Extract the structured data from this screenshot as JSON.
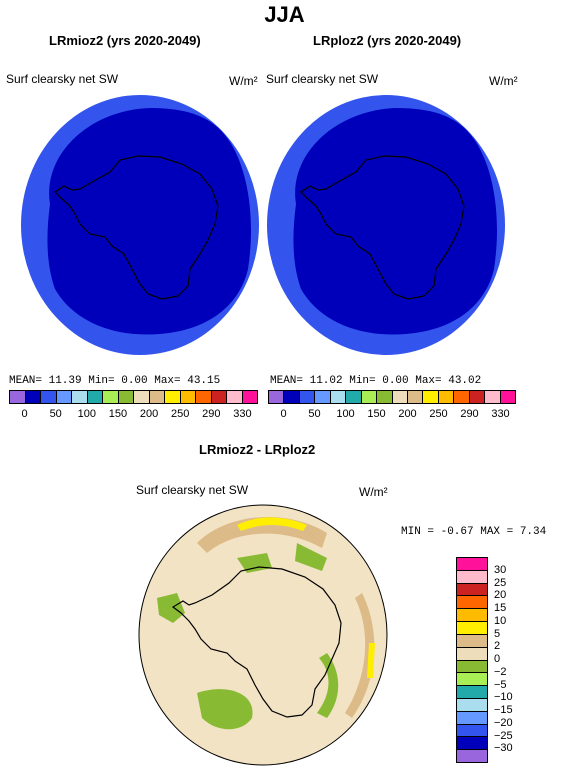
{
  "figure": {
    "title": "JJA"
  },
  "left_panel": {
    "title": "LRmioz2 (yrs 2020-2049)",
    "variable": "Surf clearsky net SW",
    "units": "W/m²",
    "stats": "MEAN=   11.39   Min=     0.00   Max=   43.15"
  },
  "right_panel": {
    "title": "LRploz2 (yrs 2020-2049)",
    "variable": "Surf clearsky net SW",
    "units": "W/m²",
    "stats": "MEAN=   11.02   Min=     0.00   Max=   43.02"
  },
  "top_colorbar": {
    "colors": [
      "#9966dd",
      "#0000bb",
      "#3355ee",
      "#6699ff",
      "#aaddee",
      "#22aaaa",
      "#aaee55",
      "#88bb33",
      "#eeddbb",
      "#ddbb88",
      "#ffee00",
      "#ffbb00",
      "#ff6600",
      "#cc2222",
      "#ffbbcc",
      "#ff1199"
    ],
    "ticks": [
      "0",
      "50",
      "100",
      "150",
      "200",
      "250",
      "290",
      "330"
    ],
    "subtick_labels": [
      "0",
      "50",
      "100",
      "150",
      "200",
      "250",
      "290",
      "330"
    ]
  },
  "bottom_panel": {
    "title": "LRmioz2 - LRploz2",
    "variable": "Surf clearsky net SW",
    "units": "W/m²",
    "stats": "MIN =   -0.67  MAX =    7.34"
  },
  "diff_colorbar": {
    "colors": [
      "#ff1199",
      "#ffbbcc",
      "#cc2222",
      "#ff6600",
      "#ffbb00",
      "#ffee00",
      "#ddbb88",
      "#eeddbb",
      "#88bb33",
      "#aaee55",
      "#22aaaa",
      "#aaddee",
      "#6699ff",
      "#3355ee",
      "#0000bb",
      "#9966dd"
    ],
    "ticks": [
      "30",
      "25",
      "20",
      "15",
      "10",
      "5",
      "2",
      "0",
      "−2",
      "−5",
      "−10",
      "−15",
      "−20",
      "−25",
      "−30"
    ]
  },
  "map_colors": {
    "ocean_outer": "#3355ee",
    "ocean_inner": "#0000bb",
    "diff_bg": "#f2e3c4",
    "diff_green": "#88bb33",
    "diff_tan": "#ddbb88",
    "diff_yellow": "#ffee00"
  }
}
